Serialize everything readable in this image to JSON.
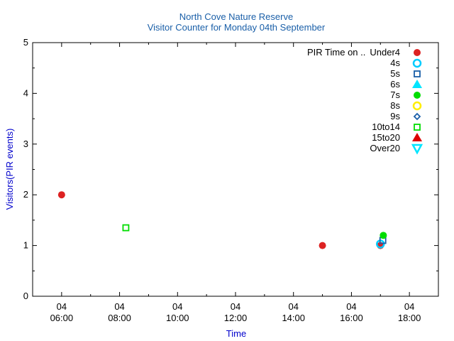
{
  "chart_data": {
    "type": "scatter",
    "title": "North Cove Nature Reserve",
    "subtitle": "Visitor Counter for Monday 04th September",
    "xlabel": "Time",
    "ylabel": "Visitors(PIR events)",
    "legend_title": "PIR Time on ..",
    "legend_placement": "top-right",
    "grid": false,
    "xlim": [
      "04 05:00",
      "04 19:00"
    ],
    "ylim": [
      0,
      5
    ],
    "x_ticks": [
      {
        "value": "04 06:00",
        "day": "04",
        "time": "06:00"
      },
      {
        "value": "04 08:00",
        "day": "04",
        "time": "08:00"
      },
      {
        "value": "04 10:00",
        "day": "04",
        "time": "10:00"
      },
      {
        "value": "04 12:00",
        "day": "04",
        "time": "12:00"
      },
      {
        "value": "04 14:00",
        "day": "04",
        "time": "14:00"
      },
      {
        "value": "04 16:00",
        "day": "04",
        "time": "16:00"
      },
      {
        "value": "04 18:00",
        "day": "04",
        "time": "18:00"
      }
    ],
    "y_ticks": [
      "0",
      "1",
      "2",
      "3",
      "4",
      "5"
    ],
    "series": [
      {
        "name": "Under4",
        "marker": "circle-filled",
        "color": "#dd2222",
        "points": [
          {
            "x": "04 06:00",
            "y": 2
          },
          {
            "x": "04 15:00",
            "y": 1
          },
          {
            "x": "04 17:00",
            "y": 1
          }
        ]
      },
      {
        "name": "4s",
        "marker": "circle-open",
        "color": "#00ccff",
        "points": [
          {
            "x": "04 17:00",
            "y": 1.03
          }
        ]
      },
      {
        "name": "5s",
        "marker": "square-open",
        "color": "#1a5fa8",
        "points": [
          {
            "x": "04 17:05",
            "y": 1.1
          }
        ]
      },
      {
        "name": "6s",
        "marker": "triangle-filled",
        "color": "#00e5ff",
        "points": []
      },
      {
        "name": "7s",
        "marker": "circle-filled",
        "color": "#00dd00",
        "points": [
          {
            "x": "04 17:06",
            "y": 1.2
          }
        ]
      },
      {
        "name": "8s",
        "marker": "circle-open",
        "color": "#ffee00",
        "points": []
      },
      {
        "name": "9s",
        "marker": "diamond-open",
        "color": "#1a5fa8",
        "points": []
      },
      {
        "name": "10to14",
        "marker": "square-open",
        "color": "#00dd00",
        "points": [
          {
            "x": "04 08:13",
            "y": 1.35
          }
        ]
      },
      {
        "name": "15to20",
        "marker": "triangle-filled",
        "color": "#dd0000",
        "points": []
      },
      {
        "name": "Over20",
        "marker": "triangle-down-open",
        "color": "#00e5ff",
        "points": []
      }
    ]
  }
}
